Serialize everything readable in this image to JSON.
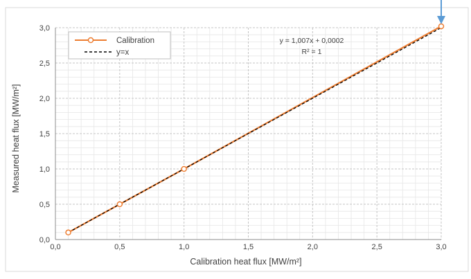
{
  "chart_data": {
    "type": "scatter",
    "title": "",
    "xlabel": "Calibration heat flux [MW/m²]",
    "ylabel": "Measured heat flux [MW/m²]",
    "xlim": [
      0,
      3
    ],
    "ylim": [
      0,
      3
    ],
    "xticks": [
      "0,0",
      "0,5",
      "1,0",
      "1,5",
      "2,0",
      "2,5",
      "3,0"
    ],
    "yticks": [
      "0,0",
      "0,5",
      "1,0",
      "1,5",
      "2,0",
      "2,5",
      "3,0"
    ],
    "grid": true,
    "legend_position": "top-left",
    "series": [
      {
        "name": "Calibration",
        "style": "line-with-circle-markers",
        "color": "#ED7D31",
        "x": [
          0.1,
          0.5,
          1.0,
          3.0
        ],
        "y": [
          0.1,
          0.5,
          1.0,
          3.02
        ]
      },
      {
        "name": "y=x",
        "style": "dashed-line",
        "color": "#000000",
        "x": [
          0.1,
          3.0
        ],
        "y": [
          0.1,
          3.0
        ]
      }
    ],
    "annotations": [
      {
        "text": "y = 1,007x + 0,0002"
      },
      {
        "text": "R² = 1"
      }
    ],
    "marker_arrow": {
      "color": "#5B9BD5",
      "points_to_x": 3.0,
      "points_to_y": 3.02
    }
  }
}
